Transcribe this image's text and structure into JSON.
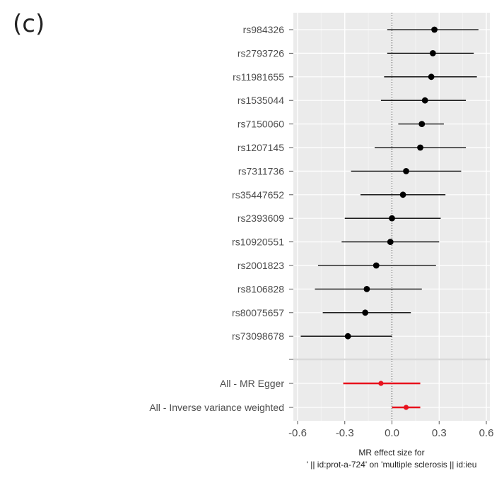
{
  "panel_label": "(c)",
  "chart_data": {
    "type": "forest",
    "xlabel_line1": "MR effect size for",
    "xlabel_line2": "' || id:prot-a-724' on 'multiple sclerosis || id:ieu",
    "xlim": [
      -0.6,
      0.6
    ],
    "xticks": [
      "-0.6",
      "-0.3",
      "0.0",
      "0.3",
      "0.6"
    ],
    "grid": true,
    "reference_line": 0,
    "snps": [
      {
        "label": "rs984326",
        "estimate": 0.27,
        "lower": -0.03,
        "upper": 0.55
      },
      {
        "label": "rs2793726",
        "estimate": 0.26,
        "lower": -0.03,
        "upper": 0.52
      },
      {
        "label": "rs11981655",
        "estimate": 0.25,
        "lower": -0.05,
        "upper": 0.54
      },
      {
        "label": "rs1535044",
        "estimate": 0.21,
        "lower": -0.07,
        "upper": 0.47
      },
      {
        "label": "rs7150060",
        "estimate": 0.19,
        "lower": 0.04,
        "upper": 0.33
      },
      {
        "label": "rs1207145",
        "estimate": 0.18,
        "lower": -0.11,
        "upper": 0.47
      },
      {
        "label": "rs7311736",
        "estimate": 0.09,
        "lower": -0.26,
        "upper": 0.44
      },
      {
        "label": "rs35447652",
        "estimate": 0.07,
        "lower": -0.2,
        "upper": 0.34
      },
      {
        "label": "rs2393609",
        "estimate": 0.0,
        "lower": -0.3,
        "upper": 0.31
      },
      {
        "label": "rs10920551",
        "estimate": -0.01,
        "lower": -0.32,
        "upper": 0.3
      },
      {
        "label": "rs2001823",
        "estimate": -0.1,
        "lower": -0.47,
        "upper": 0.28
      },
      {
        "label": "rs8106828",
        "estimate": -0.16,
        "lower": -0.49,
        "upper": 0.19
      },
      {
        "label": "rs80075657",
        "estimate": -0.17,
        "lower": -0.44,
        "upper": 0.12
      },
      {
        "label": "rs73098678",
        "estimate": -0.28,
        "lower": -0.58,
        "upper": 0.0
      }
    ],
    "summary": [
      {
        "label": "All - MR Egger",
        "estimate": -0.07,
        "lower": -0.31,
        "upper": 0.18
      },
      {
        "label": "All - Inverse variance weighted",
        "estimate": 0.09,
        "lower": 0.0,
        "upper": 0.18
      }
    ],
    "colors": {
      "panel_bg": "#ebebeb",
      "grid_major": "#ffffff",
      "grid_minor": "#f4f4f4",
      "snp": "#000000",
      "summary": "#e8111d",
      "axis_text": "#4d4d4d",
      "separator": "#d9d9d9"
    }
  }
}
